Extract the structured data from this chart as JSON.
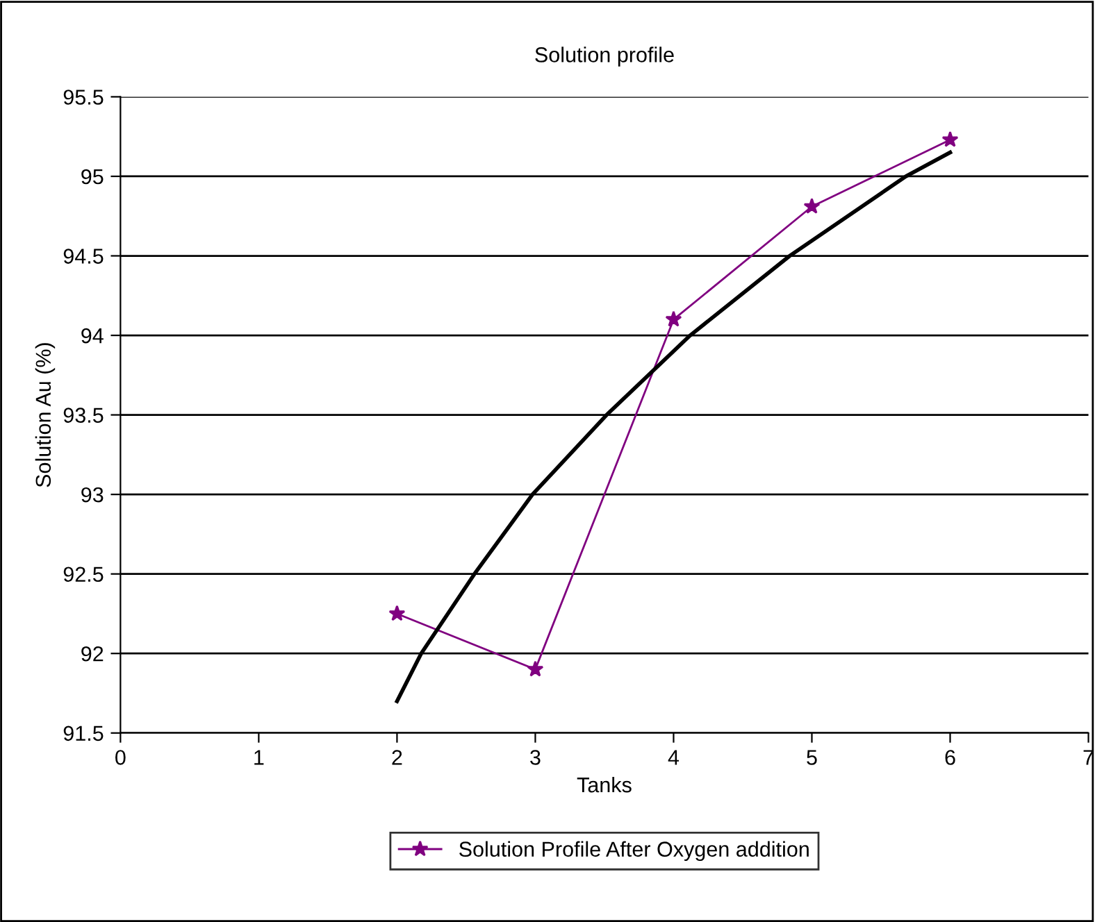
{
  "chart_data": {
    "type": "line",
    "title": "Solution profile",
    "xlabel": "Tanks",
    "ylabel": "Solution Au (%)",
    "xlim": [
      0,
      7
    ],
    "xticks": [
      0,
      1,
      2,
      3,
      4,
      5,
      6,
      7
    ],
    "ylim": [
      91.5,
      95.5
    ],
    "yticks": [
      91.5,
      92,
      92.5,
      93,
      93.5,
      94,
      94.5,
      95,
      95.5
    ],
    "grid": "y",
    "legend": "bottom",
    "series": [
      {
        "name": "Solution Profile After Oxygen addition",
        "color": "#800080",
        "x": [
          2,
          3,
          4,
          5,
          6
        ],
        "values": [
          92.25,
          91.9,
          94.1,
          94.81,
          95.23
        ],
        "marker": "star"
      },
      {
        "color": "#000000",
        "x": [
          2,
          2.175,
          2.56,
          2.98,
          3.516,
          4.12,
          4.84,
          5.68,
          6.0
        ],
        "values": [
          91.7,
          92,
          92.5,
          93,
          93.5,
          94,
          94.5,
          95,
          95.15
        ],
        "marker": "none"
      }
    ]
  }
}
